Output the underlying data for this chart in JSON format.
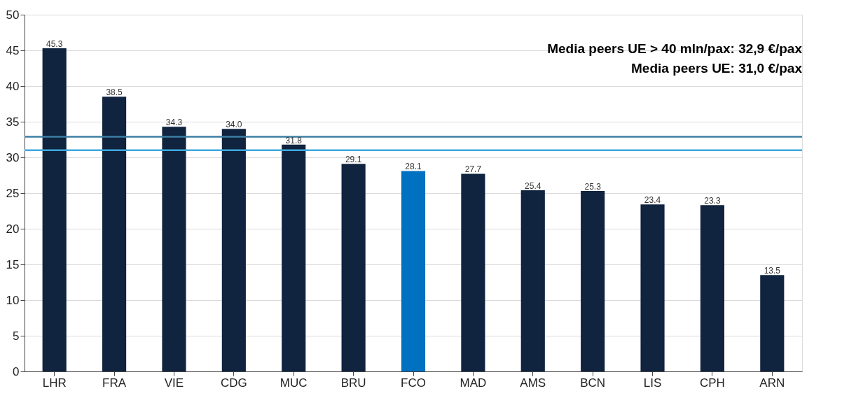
{
  "chart_data": {
    "type": "bar",
    "categories": [
      "LHR",
      "FRA",
      "VIE",
      "CDG",
      "MUC",
      "BRU",
      "FCO",
      "MAD",
      "AMS",
      "BCN",
      "LIS",
      "CPH",
      "ARN"
    ],
    "values": [
      45.3,
      38.5,
      34.3,
      34.0,
      31.8,
      29.1,
      28.1,
      27.7,
      25.4,
      25.3,
      23.4,
      23.3,
      13.5
    ],
    "colors": [
      "#10233f",
      "#10233f",
      "#10233f",
      "#10233f",
      "#10233f",
      "#10233f",
      "#0070c0",
      "#10233f",
      "#10233f",
      "#10233f",
      "#10233f",
      "#10233f",
      "#10233f"
    ],
    "ylim": [
      0,
      50
    ],
    "yticks": [
      0,
      5,
      10,
      15,
      20,
      25,
      30,
      35,
      40,
      45,
      50
    ],
    "grid": "y",
    "value_labels": [
      "45.3",
      "38.5",
      "34.3",
      "34.0",
      "31.8",
      "29.1",
      "28.1",
      "27.7",
      "25.4",
      "25.3",
      "23.4",
      "23.3",
      "13.5"
    ],
    "ref_lines": [
      {
        "axis": "y",
        "value": 32.9,
        "color": "#3d7fa3"
      },
      {
        "axis": "y",
        "value": 31.0,
        "color": "#3fa9e0"
      }
    ],
    "annotations": [
      "Media peers UE > 40 mln/pax: 32,9 €/pax",
      "Media peers UE: 31,0 €/pax"
    ]
  }
}
